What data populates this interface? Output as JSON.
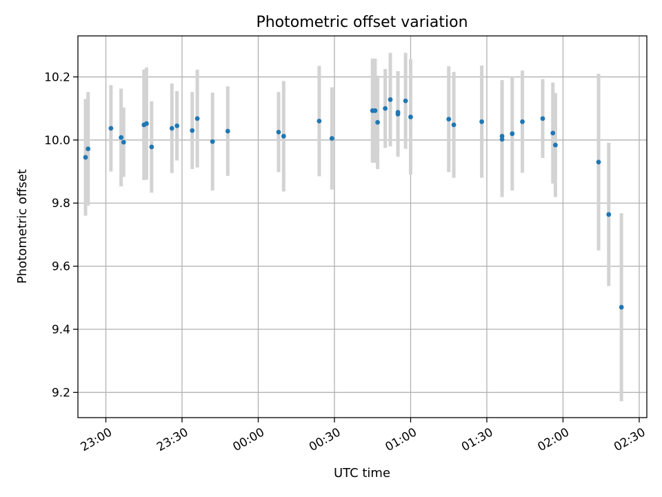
{
  "chart_data": {
    "type": "scatter",
    "title": "Photometric offset variation",
    "xlabel": "UTC time",
    "ylabel": "Photometric offset",
    "x_axis": "time",
    "xlim": [
      "22:49",
      "02:33"
    ],
    "ylim": [
      9.12,
      10.33
    ],
    "grid": true,
    "legend": "none",
    "colors": {
      "points": "#1f77b4",
      "error_bars": "#d3d3d3"
    },
    "x_ticks": [
      "23:00",
      "23:30",
      "00:00",
      "00:30",
      "01:00",
      "01:30",
      "02:00",
      "02:30"
    ],
    "y_ticks": [
      "9.2",
      "9.4",
      "9.6",
      "9.8",
      "10.0",
      "10.2"
    ],
    "y_tick_values": [
      9.2,
      9.4,
      9.6,
      9.8,
      10.0,
      10.2
    ],
    "points": [
      {
        "t": "22:52",
        "y": 9.945,
        "err": 0.185
      },
      {
        "t": "22:53",
        "y": 9.972,
        "err": 0.18
      },
      {
        "t": "23:02",
        "y": 10.037,
        "err": 0.137
      },
      {
        "t": "23:06",
        "y": 10.008,
        "err": 0.155
      },
      {
        "t": "23:07",
        "y": 9.993,
        "err": 0.11
      },
      {
        "t": "23:15",
        "y": 10.048,
        "err": 0.175
      },
      {
        "t": "23:16",
        "y": 10.052,
        "err": 0.178
      },
      {
        "t": "23:18",
        "y": 9.978,
        "err": 0.145
      },
      {
        "t": "23:26",
        "y": 10.037,
        "err": 0.142
      },
      {
        "t": "23:28",
        "y": 10.045,
        "err": 0.11
      },
      {
        "t": "23:34",
        "y": 10.03,
        "err": 0.122
      },
      {
        "t": "23:36",
        "y": 10.068,
        "err": 0.155
      },
      {
        "t": "23:42",
        "y": 9.995,
        "err": 0.155
      },
      {
        "t": "23:48",
        "y": 10.028,
        "err": 0.142
      },
      {
        "t": "00:08",
        "y": 10.025,
        "err": 0.127
      },
      {
        "t": "00:10",
        "y": 10.012,
        "err": 0.175
      },
      {
        "t": "00:24",
        "y": 10.06,
        "err": 0.175
      },
      {
        "t": "00:29",
        "y": 10.005,
        "err": 0.162
      },
      {
        "t": "00:45",
        "y": 10.093,
        "err": 0.165
      },
      {
        "t": "00:46",
        "y": 10.093,
        "err": 0.165
      },
      {
        "t": "00:47",
        "y": 10.056,
        "err": 0.148
      },
      {
        "t": "00:50",
        "y": 10.1,
        "err": 0.125
      },
      {
        "t": "00:52",
        "y": 10.128,
        "err": 0.148
      },
      {
        "t": "00:55",
        "y": 10.082,
        "err": 0.135
      },
      {
        "t": "00:55",
        "y": 10.088,
        "err": 0.13
      },
      {
        "t": "00:58",
        "y": 10.124,
        "err": 0.152
      },
      {
        "t": "01:00",
        "y": 10.073,
        "err": 0.183
      },
      {
        "t": "01:15",
        "y": 10.066,
        "err": 0.168
      },
      {
        "t": "01:17",
        "y": 10.048,
        "err": 0.168
      },
      {
        "t": "01:28",
        "y": 10.058,
        "err": 0.178
      },
      {
        "t": "01:36",
        "y": 10.012,
        "err": 0.178
      },
      {
        "t": "01:36",
        "y": 10.002,
        "err": 0.183
      },
      {
        "t": "01:40",
        "y": 10.02,
        "err": 0.18
      },
      {
        "t": "01:44",
        "y": 10.058,
        "err": 0.162
      },
      {
        "t": "01:52",
        "y": 10.068,
        "err": 0.125
      },
      {
        "t": "01:56",
        "y": 10.022,
        "err": 0.16
      },
      {
        "t": "01:57",
        "y": 9.984,
        "err": 0.165
      },
      {
        "t": "02:14",
        "y": 9.93,
        "err": 0.28
      },
      {
        "t": "02:18",
        "y": 9.764,
        "err": 0.227
      },
      {
        "t": "02:23",
        "y": 9.47,
        "err": 0.298
      }
    ]
  }
}
